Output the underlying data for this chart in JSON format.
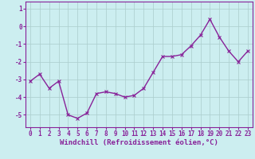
{
  "x": [
    0,
    1,
    2,
    3,
    4,
    5,
    6,
    7,
    8,
    9,
    10,
    11,
    12,
    13,
    14,
    15,
    16,
    17,
    18,
    19,
    20,
    21,
    22,
    23
  ],
  "y": [
    -3.1,
    -2.7,
    -3.5,
    -3.1,
    -5.0,
    -5.2,
    -4.9,
    -3.8,
    -3.7,
    -3.8,
    -4.0,
    -3.9,
    -3.5,
    -2.6,
    -1.7,
    -1.7,
    -1.6,
    -1.1,
    -0.5,
    0.4,
    -0.6,
    -1.4,
    -2.0,
    -1.4
  ],
  "line_color": "#882299",
  "marker": "x",
  "marker_size": 3,
  "marker_linewidth": 0.8,
  "background_color": "#cceef0",
  "grid_color": "#aacccc",
  "ylabel_ticks": [
    1,
    0,
    -1,
    -2,
    -3,
    -4,
    -5
  ],
  "ylim": [
    -5.7,
    1.4
  ],
  "xlim": [
    -0.5,
    23.5
  ],
  "xlabel": "Windchill (Refroidissement éolien,°C)",
  "xlabel_fontsize": 6.5,
  "tick_fontsize": 5.5,
  "line_width": 1.0,
  "xtick_labels": [
    "0",
    "1",
    "2",
    "3",
    "4",
    "5",
    "6",
    "7",
    "8",
    "9",
    "10",
    "11",
    "12",
    "13",
    "14",
    "15",
    "16",
    "17",
    "18",
    "19",
    "20",
    "21",
    "22",
    "23"
  ]
}
